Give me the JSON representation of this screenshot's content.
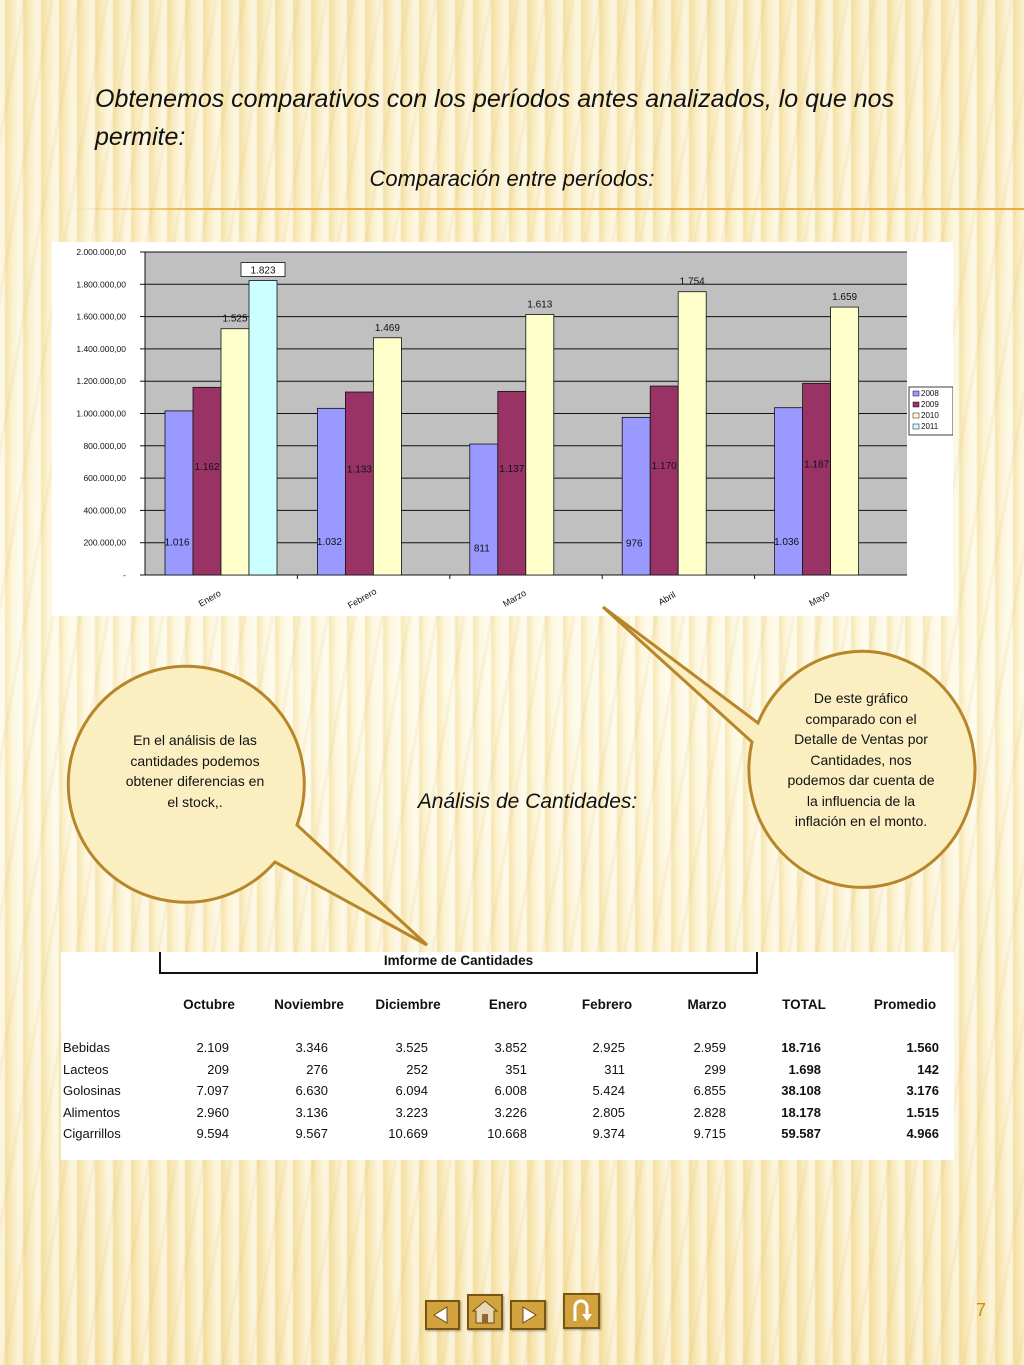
{
  "intro": "Obtenemos comparativos con los períodos antes analizados, lo que nos permite:",
  "chart_title": "Comparación entre períodos:",
  "section_title": "Análisis de Cantidades:",
  "callout_left": "En el análisis de las cantidades podemos obtener diferencias en el stock,.",
  "callout_right": "De este gráfico comparado con el Detalle de Ventas por Cantidades, nos podemos dar cuenta de la influencia de la inflación en el monto.",
  "page_number": "7",
  "nav": {
    "icons": [
      "arrow-left-icon",
      "home-icon",
      "arrow-right-icon",
      "return-icon"
    ]
  },
  "colors": {
    "s2008": "#9999ff",
    "s2009": "#993366",
    "s2010": "#ffffcc",
    "s2011": "#ccffff",
    "plot_bg": "#c0c0c0",
    "accent": "#b8862a"
  },
  "chart_data": {
    "type": "bar",
    "categories": [
      "Enero",
      "Febrero",
      "Marzo",
      "Abril",
      "Mayo"
    ],
    "series": [
      {
        "name": "2008",
        "values": [
          1016,
          1032,
          811,
          976,
          1036
        ]
      },
      {
        "name": "2009",
        "values": [
          1162,
          1133,
          1137,
          1170,
          1187
        ]
      },
      {
        "name": "2010",
        "values": [
          1525,
          1469,
          1613,
          1754,
          1659
        ]
      },
      {
        "name": "2011",
        "values": [
          1823,
          null,
          null,
          null,
          null
        ]
      }
    ],
    "data_labels": [
      [
        "1.016",
        "1.032",
        "811",
        "976",
        "1.036"
      ],
      [
        "1.162",
        "1.133",
        "1.137",
        "1.170",
        "1.187"
      ],
      [
        "1.525",
        "1.469",
        "1.613",
        "1.754",
        "1.659"
      ],
      [
        "1.823",
        "",
        "",
        "",
        ""
      ]
    ],
    "yticks": [
      "2.000.000,00",
      "1.800.000,00",
      "1.600.000,00",
      "1.400.000,00",
      "1.200.000,00",
      "1.000.000,00",
      "800.000,00",
      "600.000,00",
      "400.000,00",
      "200.000,00",
      "-"
    ],
    "ylim": [
      0,
      2000000
    ],
    "value_scale": 1000,
    "grid": true,
    "legend_position": "right"
  },
  "table": {
    "title": "Imforme de Cantidades",
    "columns": [
      "Octubre",
      "Noviembre",
      "Diciembre",
      "Enero",
      "Febrero",
      "Marzo",
      "TOTAL",
      "Promedio"
    ],
    "rows": [
      {
        "label": "Bebidas",
        "values": [
          "2.109",
          "3.346",
          "3.525",
          "3.852",
          "2.925",
          "2.959",
          "18.716",
          "1.560"
        ]
      },
      {
        "label": "Lacteos",
        "values": [
          "209",
          "276",
          "252",
          "351",
          "311",
          "299",
          "1.698",
          "142"
        ]
      },
      {
        "label": "Golosinas",
        "values": [
          "7.097",
          "6.630",
          "6.094",
          "6.008",
          "5.424",
          "6.855",
          "38.108",
          "3.176"
        ]
      },
      {
        "label": "Alimentos",
        "values": [
          "2.960",
          "3.136",
          "3.223",
          "3.226",
          "2.805",
          "2.828",
          "18.178",
          "1.515"
        ]
      },
      {
        "label": "Cigarrillos",
        "values": [
          "9.594",
          "9.567",
          "10.669",
          "10.668",
          "9.374",
          "9.715",
          "59.587",
          "4.966"
        ]
      }
    ]
  }
}
